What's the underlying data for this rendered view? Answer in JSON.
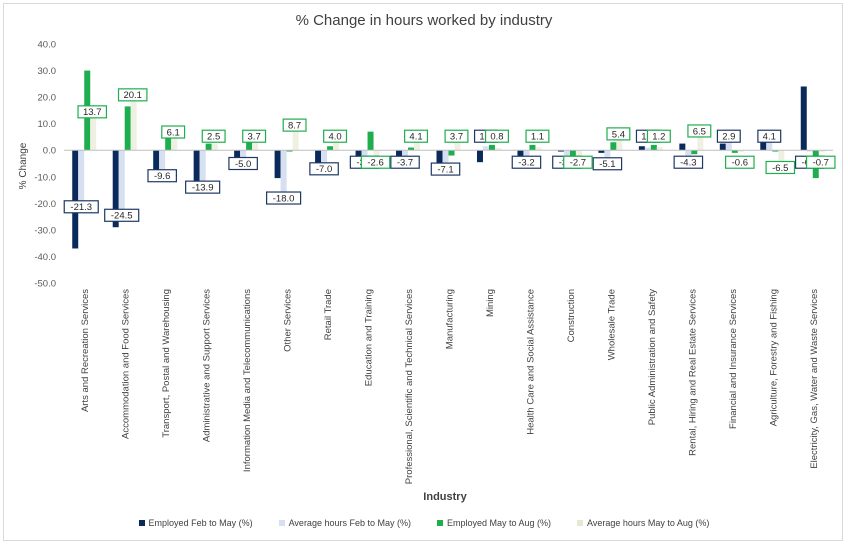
{
  "chart_data": {
    "type": "bar",
    "title": "% Change in hours worked by industry",
    "xlabel": "Industry",
    "ylabel": "% Change",
    "ylim": [
      -50,
      40
    ],
    "yticks": [
      "40.0",
      "30.0",
      "20.0",
      "10.0",
      "0.0",
      "-10.0",
      "-20.0",
      "-30.0",
      "-40.0",
      "-50.0"
    ],
    "grid": false,
    "legend_position": "bottom",
    "categories": [
      "Arts and Recreation Services",
      "Accommodation and Food Services",
      "Transport, Postal and Warehousing",
      "Administrative and Support Services",
      "Information Media and Telecommunications",
      "Other Services",
      "Retail Trade",
      "Education and Training",
      "Professional, Scientific and Technical Services",
      "Manufacturing",
      "Mining",
      "Health Care and Social Assistance",
      "Construction",
      "Wholesale Trade",
      "Public Administration and Safety",
      "Rental, Hiring and Real Estate Services",
      "Financial and Insurance Services",
      "Agriculture, Forestry and Fishing",
      "Electricity, Gas, Water and Waste Services"
    ],
    "series": [
      {
        "name": "Employed Feb to May (%)",
        "color": "#0b2a5c",
        "values": [
          -37,
          -29,
          -11,
          -13,
          -6,
          -10.5,
          -6.5,
          -4.5,
          -5,
          -5,
          -4.5,
          -4,
          -0.5,
          -1,
          1.5,
          2.5,
          2.5,
          5,
          24
        ]
      },
      {
        "name": "Average hours Feb to May (%)",
        "color": "#d6e0f0",
        "values": [
          -21.3,
          -24.5,
          -9.6,
          -13.9,
          -5.0,
          -18.0,
          -7.0,
          -3.4,
          -3.7,
          -7.1,
          1.5,
          -3.2,
          -3.0,
          -5.1,
          1.0,
          -4.3,
          2.9,
          4.1,
          -0.5
        ]
      },
      {
        "name": "Employed May to Aug (%)",
        "color": "#1fae4e",
        "values": [
          30,
          16.5,
          7,
          2.5,
          3.5,
          -0.5,
          1.5,
          7,
          1,
          -2,
          2,
          2,
          -2,
          3,
          2,
          -1.5,
          -1,
          -0.5,
          -10.5
        ]
      },
      {
        "name": "Average hours May to Aug (%)",
        "color": "#eef0e2",
        "values": [
          13.7,
          20.1,
          6.1,
          2.5,
          3.7,
          8.7,
          4.0,
          -2.6,
          4.1,
          3.7,
          0.8,
          1.1,
          -2.7,
          5.4,
          1.2,
          6.5,
          -0.6,
          -6.5,
          -0.7
        ]
      }
    ],
    "data_labels": {
      "feb_may": [
        "-21.3",
        "-24.5",
        "-9.6",
        "-13.9",
        "-5.0",
        "-18.0",
        "-7.0",
        "-3.4",
        "-3.7",
        "-7.1",
        "1.5",
        "-3.2",
        "-3.0",
        "-5.1",
        "1.0",
        "-4.3",
        "2.9",
        "4.1",
        "-0.5"
      ],
      "may_aug": [
        "13.7",
        "20.1",
        "6.1",
        "2.5",
        "3.7",
        "8.7",
        "4.0",
        "-2.6",
        "4.1",
        "3.7",
        "0.8",
        "1.1",
        "-2.7",
        "5.4",
        "1.2",
        "6.5",
        "-0.6",
        "-6.5",
        "-0.7"
      ]
    }
  }
}
